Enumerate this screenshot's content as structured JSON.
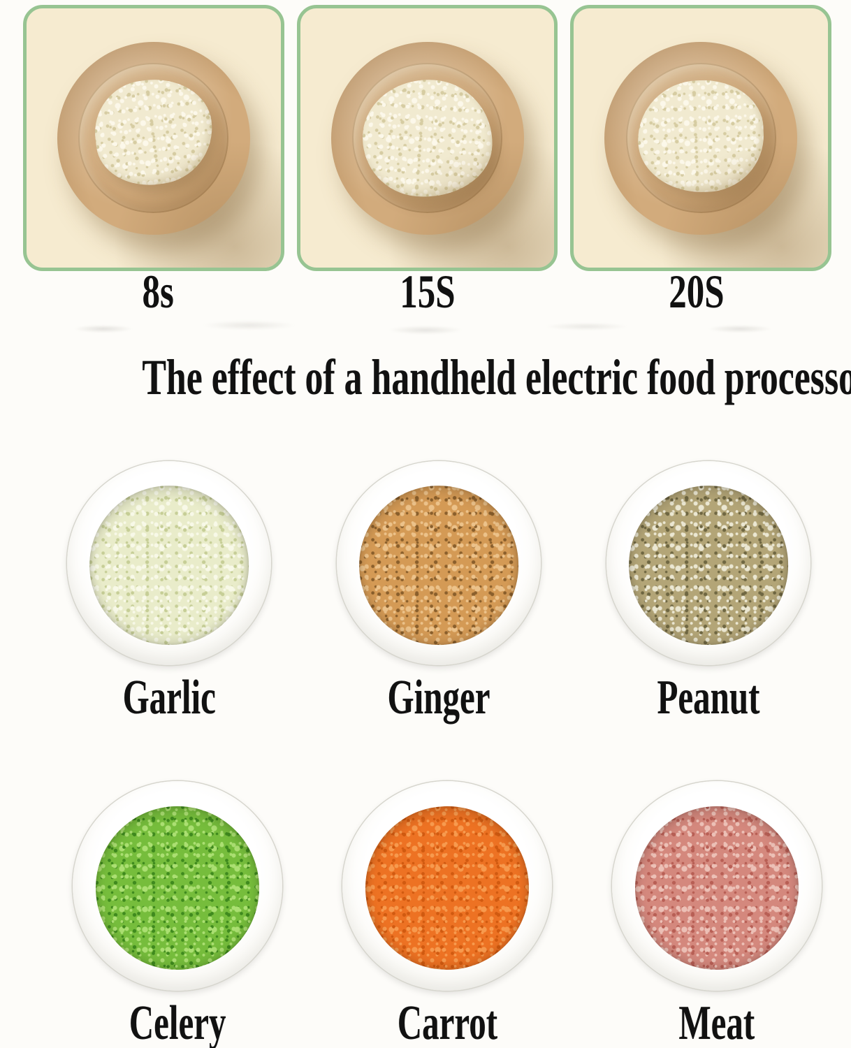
{
  "title": "The effect of a handheld electric food processor",
  "panels": [
    {
      "time_label": "8s"
    },
    {
      "time_label": "15S"
    },
    {
      "time_label": "20S"
    }
  ],
  "garlic_pile": {
    "base": "#f1ead0",
    "speck_light": "#fcf8ea",
    "speck_dark": "#d6cca2"
  },
  "results": [
    {
      "label": "Garlic",
      "base": "#e9ecca",
      "speck_light": "#f8f9e8",
      "speck_dark": "#c6ce96"
    },
    {
      "label": "Ginger",
      "base": "#d49a55",
      "speck_light": "#ecc28a",
      "speck_dark": "#8a5f2c"
    },
    {
      "label": "Peanut",
      "base": "#b3a577",
      "speck_light": "#ebe7d2",
      "speck_dark": "#6f6742"
    },
    {
      "label": "Celery",
      "base": "#76bd3c",
      "speck_light": "#abdf72",
      "speck_dark": "#3f8a1e"
    },
    {
      "label": "Carrot",
      "base": "#ed7223",
      "speck_light": "#f79a4e",
      "speck_dark": "#d15a10"
    },
    {
      "label": "Meat",
      "base": "#d4887d",
      "speck_light": "#ecc0b6",
      "speck_dark": "#b85f55"
    }
  ],
  "colors": {
    "page_bg": "#fdfcf9",
    "text": "#111111",
    "panel_border": "#97c492",
    "panel_bg": "#f6ebd0",
    "wood_plate": "#d2ab7c",
    "bowl_white": "#ffffff"
  }
}
